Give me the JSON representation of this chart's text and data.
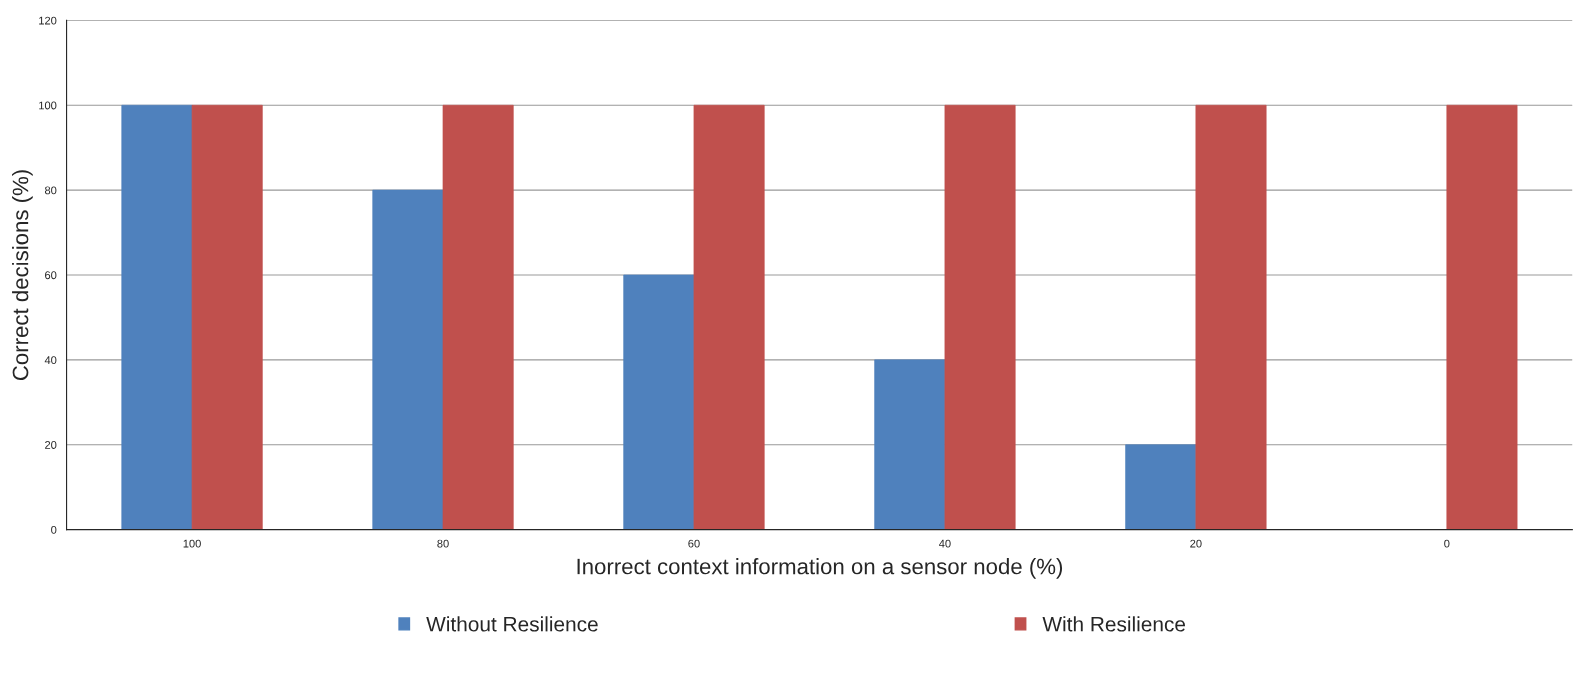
{
  "chart_data": {
    "type": "bar",
    "xlabel": "Inorrect context information on a sensor node (%)",
    "ylabel": "Correct decisions (%)",
    "categories": [
      "100",
      "80",
      "60",
      "40",
      "20",
      "0"
    ],
    "series": [
      {
        "name": "Without Resilience",
        "color": "#4f81bd",
        "values": [
          100,
          80,
          60,
          40,
          20,
          0
        ]
      },
      {
        "name": "With Resilience",
        "color": "#c0504d",
        "values": [
          100,
          100,
          100,
          100,
          100,
          100
        ]
      }
    ],
    "ylim": [
      0,
      120
    ],
    "yticks": [
      0,
      20,
      40,
      60,
      80,
      100,
      120
    ],
    "grid": "y",
    "legend": "bottom"
  }
}
